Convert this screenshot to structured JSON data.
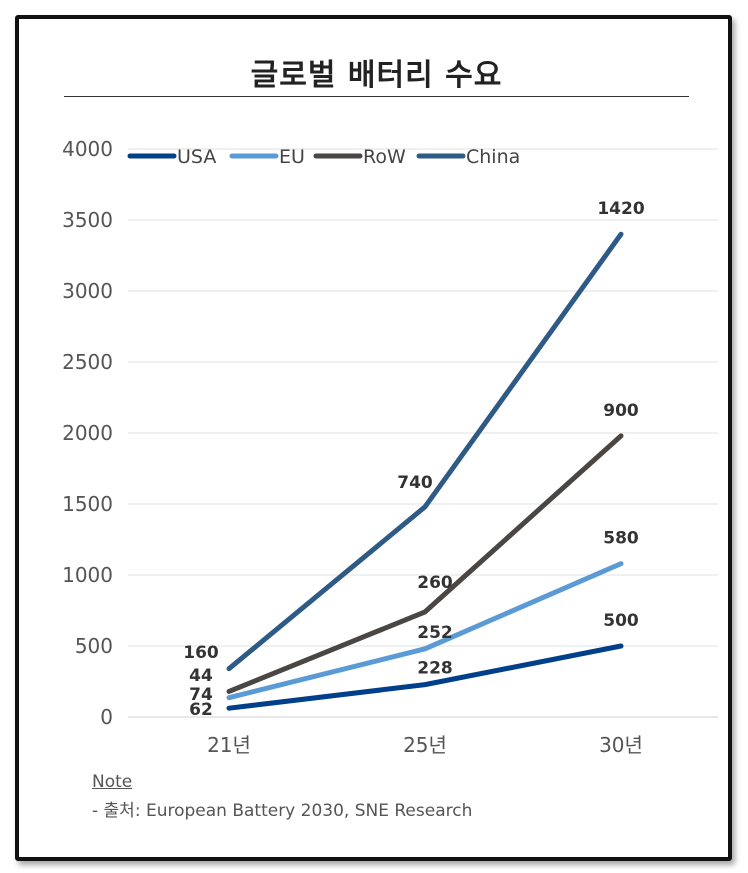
{
  "title": "글로벌 배터리 수요",
  "note_label": "Note",
  "source": "- 출처: European Battery 2030, SNE Research",
  "chart_data": {
    "type": "line",
    "title": "글로벌 배터리 수요",
    "categories": [
      "21년",
      "25년",
      "30년"
    ],
    "ylim": [
      0,
      4000
    ],
    "yticks": [
      0,
      500,
      1000,
      1500,
      2000,
      2500,
      3000,
      3500,
      4000
    ],
    "grid": true,
    "stacked": true,
    "legend_position": "top-left",
    "series": [
      {
        "name": "USA",
        "color": "#003f8a",
        "values": [
          62,
          228,
          500
        ]
      },
      {
        "name": "EU",
        "color": "#5b9bd5",
        "values": [
          74,
          252,
          580
        ]
      },
      {
        "name": "RoW",
        "color": "#4a4644",
        "values": [
          44,
          260,
          900
        ]
      },
      {
        "name": "China",
        "color": "#2e5a86",
        "values": [
          160,
          740,
          1420
        ]
      }
    ]
  }
}
